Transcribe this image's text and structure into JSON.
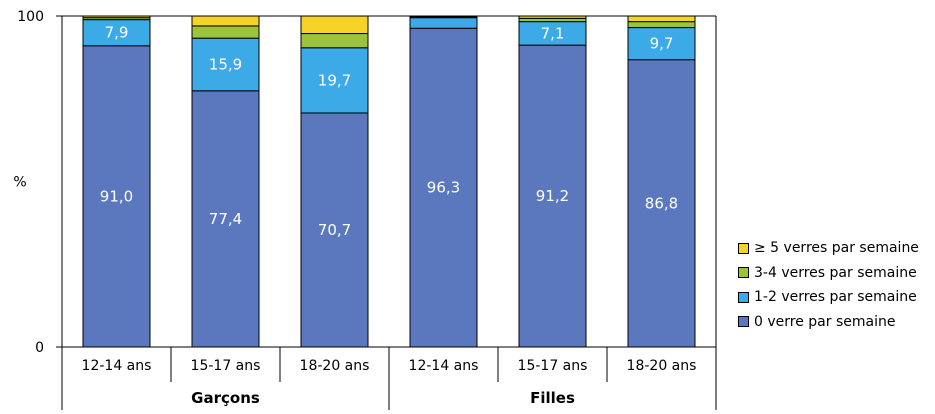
{
  "chart_data": {
    "type": "bar",
    "stacked": true,
    "ylabel": "%",
    "ylim": [
      0,
      100
    ],
    "yticks": [
      "0",
      "100"
    ],
    "groups": [
      {
        "label": "Garçons",
        "categories": [
          "12-14 ans",
          "15-17 ans",
          "18-20 ans"
        ]
      },
      {
        "label": "Filles",
        "categories": [
          "12-14 ans",
          "15-17 ans",
          "18-20 ans"
        ]
      }
    ],
    "categories": [
      "12-14 ans",
      "15-17 ans",
      "18-20 ans",
      "12-14 ans",
      "15-17 ans",
      "18-20 ans"
    ],
    "series": [
      {
        "name": "0 verre par semaine",
        "color": "#5b78bf",
        "values": [
          91.0,
          77.4,
          70.7,
          96.3,
          91.2,
          86.8
        ],
        "labels": [
          "91,0",
          "77,4",
          "70,7",
          "96,3",
          "91,2",
          "86,8"
        ]
      },
      {
        "name": "1-2 verres par semaine",
        "color": "#3baae6",
        "values": [
          7.9,
          15.9,
          19.7,
          3.2,
          7.1,
          9.7
        ],
        "labels": [
          "7,9",
          "15,9",
          "19,7",
          "",
          "7,1",
          "9,7"
        ]
      },
      {
        "name": "3-4 verres par semaine",
        "color": "#9bc33b",
        "values": [
          0.6,
          3.7,
          4.3,
          0.2,
          1.0,
          1.8
        ],
        "labels": [
          "",
          "",
          "",
          "",
          "",
          ""
        ]
      },
      {
        "name": "≥ 5 verres par semaine",
        "color": "#f5d328",
        "values": [
          0.5,
          3.0,
          5.3,
          0.3,
          0.7,
          1.7
        ],
        "labels": [
          "",
          "",
          "",
          "",
          "",
          ""
        ]
      }
    ],
    "legend_order": [
      3,
      2,
      1,
      0
    ],
    "legend_position": "right",
    "grid": false
  }
}
